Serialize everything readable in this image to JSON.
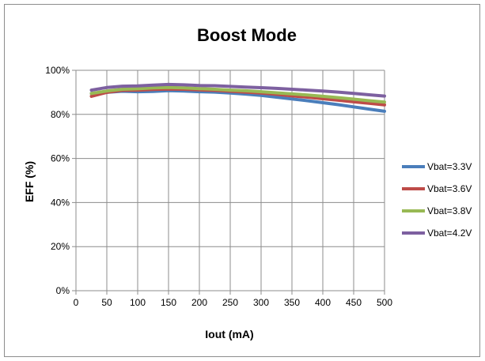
{
  "chart_data": {
    "type": "line",
    "title": "Boost Mode",
    "xlabel": "Iout (mA)",
    "ylabel": "EFF (%)",
    "xlim": [
      0,
      500
    ],
    "ylim": [
      0,
      100
    ],
    "x_ticks": [
      0,
      50,
      100,
      150,
      200,
      250,
      300,
      350,
      400,
      450,
      500
    ],
    "y_ticks": [
      0,
      20,
      40,
      60,
      80,
      100
    ],
    "y_tick_labels": [
      "0%",
      "20%",
      "40%",
      "60%",
      "80%",
      "100%"
    ],
    "grid": true,
    "legend_position": "right",
    "x": [
      25,
      50,
      75,
      100,
      125,
      150,
      175,
      200,
      225,
      250,
      275,
      300,
      325,
      350,
      375,
      400,
      425,
      450,
      475,
      500
    ],
    "series": [
      {
        "name": "Vbat=3.3V",
        "color": "#4a7ebb",
        "values": [
          89.5,
          90.0,
          90.5,
          90.3,
          90.4,
          90.8,
          90.6,
          90.3,
          90.1,
          89.7,
          89.2,
          88.6,
          87.8,
          87.0,
          86.2,
          85.3,
          84.4,
          83.4,
          82.4,
          81.4
        ]
      },
      {
        "name": "Vbat=3.6V",
        "color": "#be4b48",
        "values": [
          88.2,
          90.0,
          90.9,
          91.0,
          91.3,
          91.5,
          91.4,
          91.1,
          90.9,
          90.5,
          90.1,
          89.7,
          89.1,
          88.4,
          87.8,
          87.1,
          86.4,
          85.7,
          85.0,
          84.3
        ]
      },
      {
        "name": "Vbat=3.8V",
        "color": "#98b954",
        "values": [
          89.5,
          90.6,
          91.4,
          91.6,
          92.0,
          92.2,
          92.0,
          91.7,
          91.4,
          91.0,
          90.7,
          90.3,
          89.8,
          89.3,
          88.8,
          88.2,
          87.6,
          86.9,
          86.2,
          85.6
        ]
      },
      {
        "name": "Vbat=4.2V",
        "color": "#7d60a0",
        "values": [
          91.0,
          92.2,
          92.8,
          92.9,
          93.3,
          93.6,
          93.4,
          93.1,
          93.0,
          92.7,
          92.4,
          92.1,
          91.8,
          91.4,
          91.0,
          90.6,
          90.1,
          89.5,
          88.9,
          88.3
        ]
      }
    ]
  }
}
